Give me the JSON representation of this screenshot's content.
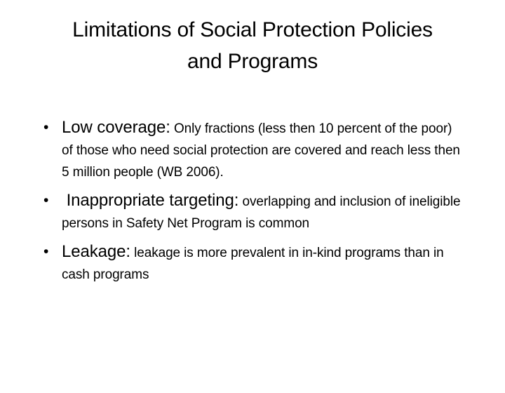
{
  "slide": {
    "kind": "presentation-slide",
    "title": {
      "full": "Limitations of Social Protection Policies and Programs",
      "line1": "Limitations of Social Protection Policies",
      "line2": "and Programs"
    },
    "bullet_char": "•",
    "bullets": [
      {
        "lead": "Low coverage:",
        "rest": " Only fractions (less then 10 percent of the poor) of those who need social protection are covered and reach less then 5 million people (WB 2006)."
      },
      {
        "lead": " Inappropriate targeting:",
        "rest": " overlapping and inclusion of ineligible persons in Safety Net Program is common"
      },
      {
        "lead": "Leakage:",
        "rest": " leakage is more prevalent in in-kind programs than in cash programs"
      }
    ],
    "colors": {
      "background": "#ffffff",
      "text": "#000000"
    }
  }
}
